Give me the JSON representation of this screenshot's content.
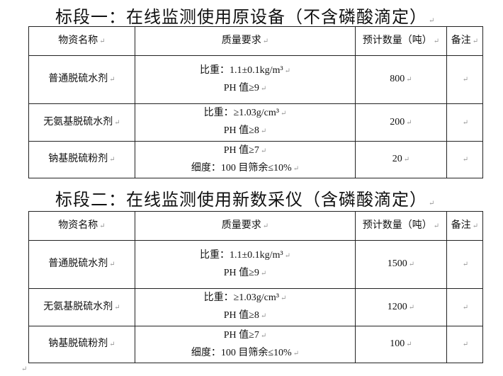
{
  "sections": [
    {
      "title": "标段一：在线监测使用原设备（不含磷酸滴定）",
      "headers": [
        "物资名称",
        "质量要求",
        "预计数量（吨）",
        "备注"
      ],
      "rows": [
        {
          "name": "普通脱硫水剂",
          "req": [
            "比重：1.1±0.1kg/m³",
            "PH 值≥9"
          ],
          "qty": "800",
          "note": ""
        },
        {
          "name": "无氨基脱硫水剂",
          "req": [
            "比重：≥1.03g/cm³",
            "PH 值≥8"
          ],
          "qty": "200",
          "note": ""
        },
        {
          "name": "钠基脱硫粉剂",
          "req": [
            "PH 值≥7",
            "细度：100 目筛余≤10%"
          ],
          "qty": "20",
          "note": ""
        }
      ]
    },
    {
      "title": "标段二：在线监测使用新数采仪（含磷酸滴定）",
      "headers": [
        "物资名称",
        "质量要求",
        "预计数量（吨）",
        "备注"
      ],
      "rows": [
        {
          "name": "普通脱硫水剂",
          "req": [
            "比重：1.1±0.1kg/m³",
            "PH 值≥9"
          ],
          "qty": "1500",
          "note": ""
        },
        {
          "name": "无氨基脱硫水剂",
          "req": [
            "比重：≥1.03g/cm³",
            "PH 值≥8"
          ],
          "qty": "1200",
          "note": ""
        },
        {
          "name": "钠基脱硫粉剂",
          "req": [
            "PH 值≥7",
            "细度：100 目筛余≤10%"
          ],
          "qty": "100",
          "note": ""
        }
      ]
    }
  ],
  "paragraph_mark": "↵"
}
